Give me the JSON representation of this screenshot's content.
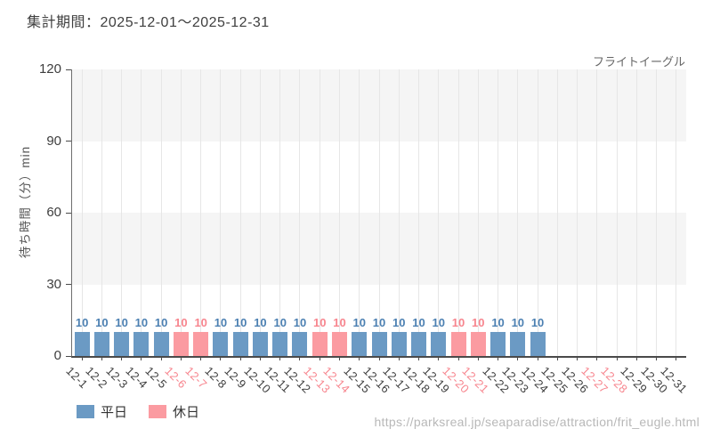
{
  "page": {
    "source_url": "https://parksreal.jp/seaparadise/attraction/frit_eugle.html"
  },
  "chart_data": {
    "type": "bar",
    "title": "集計期間：2025-12-01～2025-12-31",
    "series_label": "フライトイーグル",
    "ylabel": "待ち時間（分）min",
    "xlabel": "",
    "ylim": [
      0,
      120
    ],
    "yticks": [
      0,
      30,
      60,
      90,
      120
    ],
    "grid": true,
    "legend_position": "bottom-left",
    "categories": [
      "12-1",
      "12-2",
      "12-3",
      "12-4",
      "12-5",
      "12-6",
      "12-7",
      "12-8",
      "12-9",
      "12-10",
      "12-11",
      "12-12",
      "12-13",
      "12-14",
      "12-15",
      "12-16",
      "12-17",
      "12-18",
      "12-19",
      "12-20",
      "12-21",
      "12-22",
      "12-23",
      "12-24",
      "12-25",
      "12-26",
      "12-27",
      "12-28",
      "12-29",
      "12-30",
      "12-31"
    ],
    "values": [
      10,
      10,
      10,
      10,
      10,
      10,
      10,
      10,
      10,
      10,
      10,
      10,
      10,
      10,
      10,
      10,
      10,
      10,
      10,
      10,
      10,
      10,
      10,
      10,
      null,
      null,
      null,
      null,
      null,
      null,
      null
    ],
    "day_types": [
      "weekday",
      "weekday",
      "weekday",
      "weekday",
      "weekday",
      "holiday",
      "holiday",
      "weekday",
      "weekday",
      "weekday",
      "weekday",
      "weekday",
      "holiday",
      "holiday",
      "weekday",
      "weekday",
      "weekday",
      "weekday",
      "weekday",
      "holiday",
      "holiday",
      "weekday",
      "weekday",
      "weekday",
      "weekday",
      "weekday",
      "holiday",
      "holiday",
      "weekday",
      "weekday",
      "weekday"
    ],
    "legend": [
      {
        "key": "weekday",
        "label": "平日"
      },
      {
        "key": "holiday",
        "label": "休日"
      }
    ],
    "colors": {
      "weekday_bar": "#6b9ac4",
      "holiday_bar": "#fb9ba1",
      "weekday_value_label": "#4c80b2",
      "holiday_value_label": "#f7858e",
      "weekday_tick_label": "#3d3d3d",
      "holiday_tick_label": "#f7858e",
      "band_gray": "#f5f5f5",
      "band_white": "#ffffff"
    }
  }
}
